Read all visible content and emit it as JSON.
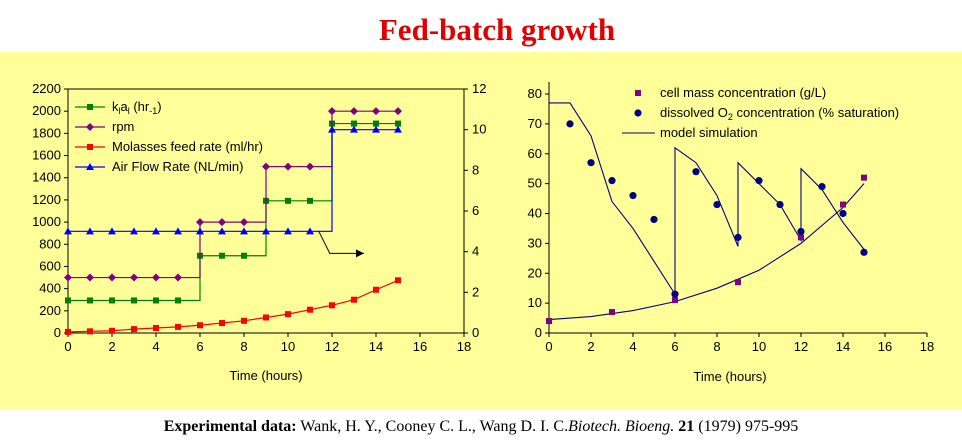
{
  "title": "Fed-batch growth",
  "citation": {
    "prefix": "Experimental data:",
    "authors": " Wank, H. Y., Cooney C. L., Wang D. I. C.",
    "journal": "Biotech. Bioeng.",
    "volume": " 21",
    "pages": " (1979) 975-995"
  },
  "chart_data": [
    {
      "type": "line",
      "xlabel": "Time (hours)",
      "xlim": [
        0,
        18
      ],
      "xticks": [
        0,
        2,
        4,
        6,
        8,
        10,
        12,
        14,
        16,
        18
      ],
      "ylim_left": [
        0,
        2200
      ],
      "yticks_left": [
        0,
        200,
        400,
        600,
        800,
        1000,
        1200,
        1400,
        1600,
        1800,
        2000,
        2200
      ],
      "ylim_right": [
        0,
        12
      ],
      "yticks_right": [
        0,
        2,
        4,
        6,
        8,
        10,
        12
      ],
      "legend_placement": "top-left",
      "series": [
        {
          "name_parts": [
            "k",
            "l",
            "a",
            "l",
            " (hr",
            "-1",
            ")"
          ],
          "axis": "right",
          "color": "#008000",
          "marker": "square",
          "x": [
            0,
            1,
            2,
            3,
            4,
            5,
            6,
            7,
            8,
            9,
            10,
            11,
            12,
            13,
            14,
            15
          ],
          "y": [
            1.6,
            1.6,
            1.6,
            1.6,
            1.6,
            1.6,
            3.8,
            3.8,
            3.8,
            6.5,
            6.5,
            6.5,
            10.3,
            10.3,
            10.3,
            10.3
          ]
        },
        {
          "name": "rpm",
          "axis": "left",
          "color": "#800080",
          "marker": "diamond",
          "x": [
            0,
            1,
            2,
            3,
            4,
            5,
            6,
            7,
            8,
            9,
            10,
            11,
            12,
            13,
            14,
            15
          ],
          "y": [
            500,
            500,
            500,
            500,
            500,
            500,
            1000,
            1000,
            1000,
            1500,
            1500,
            1500,
            2000,
            2000,
            2000,
            2000
          ]
        },
        {
          "name": "Molasses feed rate (ml/hr)",
          "axis": "left",
          "color": "#ff0000",
          "marker": "square",
          "x": [
            0,
            1,
            2,
            3,
            4,
            5,
            6,
            7,
            8,
            9,
            10,
            11,
            12,
            13,
            14,
            15
          ],
          "y": [
            10,
            15,
            20,
            35,
            45,
            55,
            70,
            90,
            110,
            140,
            170,
            210,
            250,
            300,
            390,
            475
          ]
        },
        {
          "name": "Air Flow Rate (NL/min)",
          "axis": "right",
          "color": "#0000ff",
          "marker": "triangle",
          "x": [
            0,
            1,
            2,
            3,
            4,
            5,
            6,
            7,
            8,
            9,
            10,
            11,
            12,
            13,
            14,
            15
          ],
          "y": [
            5,
            5,
            5,
            5,
            5,
            5,
            5,
            5,
            5,
            5,
            5,
            5,
            10,
            10,
            10,
            10
          ]
        }
      ],
      "annotation": "arrow pointing to right axis"
    },
    {
      "type": "scatter",
      "xlabel": "Time (hours)",
      "xlim": [
        0,
        18
      ],
      "xticks": [
        0,
        2,
        4,
        6,
        8,
        10,
        12,
        14,
        16,
        18
      ],
      "ylim": [
        0,
        80
      ],
      "yticks": [
        0,
        10,
        20,
        30,
        40,
        50,
        60,
        70,
        80
      ],
      "legend_placement": "top-right",
      "series": [
        {
          "name": "cell mass concentration (g/L)",
          "color": "#800080",
          "marker": "square",
          "x": [
            0,
            3,
            6,
            9,
            12,
            14,
            15
          ],
          "y": [
            4,
            7,
            11,
            17,
            32,
            43,
            52
          ]
        },
        {
          "name_parts": [
            "dissolved O",
            "2",
            " concentration (% saturation)"
          ],
          "color": "#000080",
          "marker": "circle",
          "x": [
            1,
            2,
            3,
            4,
            5,
            6,
            7,
            8,
            9,
            10,
            11,
            12,
            13,
            14,
            15
          ],
          "y": [
            70,
            57,
            51,
            46,
            38,
            13,
            54,
            43,
            32,
            51,
            43,
            34,
            49,
            40,
            27
          ]
        },
        {
          "name": "model simulation",
          "color": "#000080",
          "marker": "none",
          "line": [
            [
              [
                0,
                77
              ],
              [
                1,
                77
              ],
              [
                2,
                66
              ],
              [
                3,
                44
              ],
              [
                4,
                35
              ],
              [
                5,
                24
              ],
              [
                6,
                13
              ],
              [
                6,
                62
              ],
              [
                7,
                57
              ],
              [
                8,
                46
              ],
              [
                9,
                29
              ],
              [
                9,
                57
              ],
              [
                10,
                50
              ],
              [
                11,
                43
              ],
              [
                12,
                31
              ],
              [
                12,
                55
              ],
              [
                13,
                48
              ],
              [
                14,
                37
              ],
              [
                15,
                28
              ]
            ],
            [
              [
                0,
                4.5
              ],
              [
                2,
                5.5
              ],
              [
                4,
                7.5
              ],
              [
                6,
                10.5
              ],
              [
                8,
                15
              ],
              [
                10,
                21
              ],
              [
                12,
                30
              ],
              [
                14,
                42
              ],
              [
                15,
                50
              ]
            ]
          ]
        }
      ]
    }
  ]
}
